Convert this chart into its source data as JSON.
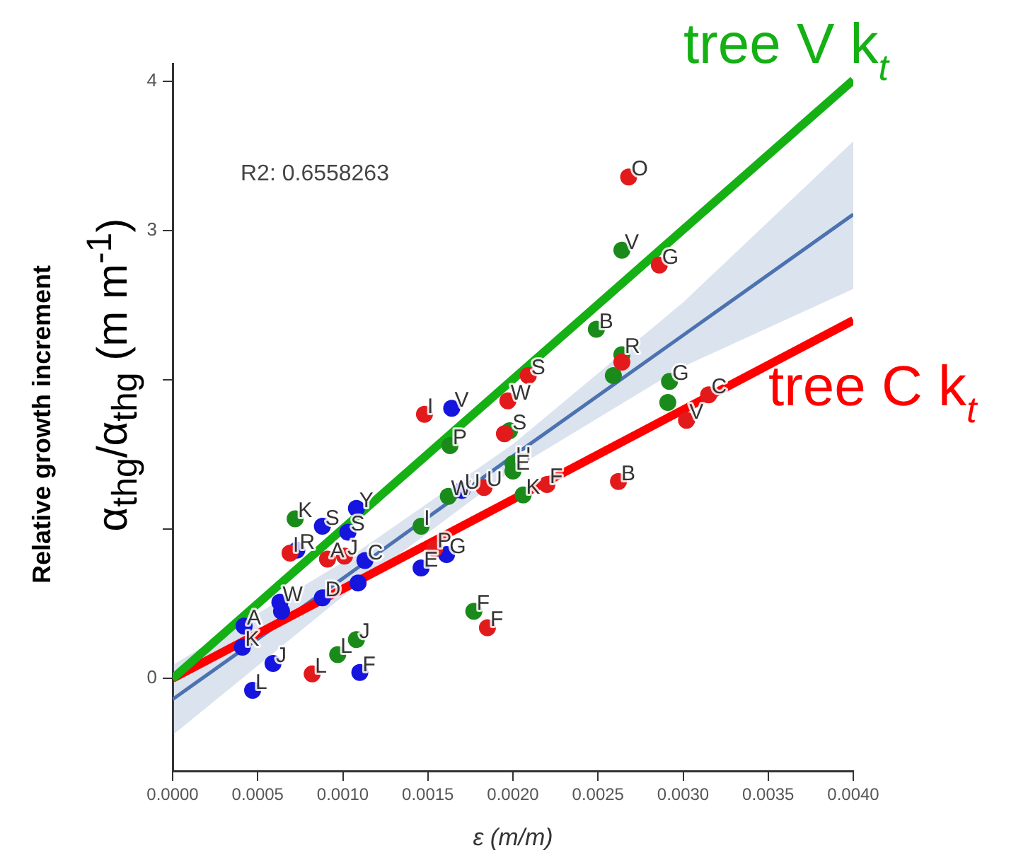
{
  "chart_data": {
    "type": "scatter",
    "xlabel": "ε (m/m)",
    "ylabel": "Relative growth increment\nα$_{thg}$/α$_{thg}$ (m m$^{-1}$)",
    "annotations": [
      "R2: 0.6558263"
    ],
    "xlim": [
      0,
      0.004
    ],
    "xticks": [
      {
        "value": 0,
        "label": "0.0000"
      },
      {
        "value": 0.0005,
        "label": "0.0005"
      },
      {
        "value": 0.001,
        "label": "0.0010"
      },
      {
        "value": 0.0015,
        "label": "0.0015"
      },
      {
        "value": 0.002,
        "label": "0.0020"
      },
      {
        "value": 0.0025,
        "label": "0.0025"
      },
      {
        "value": 0.003,
        "label": "0.0030"
      },
      {
        "value": 0.0035,
        "label": "0.0035"
      },
      {
        "value": 0.004,
        "label": "0.0040"
      }
    ],
    "ylim": [
      -0.62,
      4.12
    ],
    "yticks": [
      0,
      {
        "value": 1,
        "label": null
      },
      {
        "value": 2,
        "label": null
      },
      3,
      4
    ],
    "grid": false,
    "legend": false,
    "series": [
      {
        "marker": "circle",
        "color": "#e31a1c",
        "x": [
          0.00268,
          0.00286,
          0.00264,
          0.00315,
          0.00302,
          0.00209,
          0.00197,
          0.00195,
          0.00183,
          0.0022,
          0.00262,
          0.00148,
          0.00185,
          0.00082,
          0.00069,
          0.00091,
          0.00101,
          0.00154
        ],
        "values": [
          3.36,
          2.77,
          2.12,
          1.9,
          1.73,
          2.03,
          1.86,
          1.64,
          1.28,
          1.3,
          1.32,
          1.77,
          0.34,
          0.03,
          0.84,
          0.8,
          0.82,
          0.87
        ],
        "value_labels": [
          "O",
          "G",
          null,
          "C",
          "V",
          "S",
          "W",
          null,
          "U",
          "F",
          "B",
          "I",
          "F",
          "L",
          "I",
          "A",
          "J",
          "P"
        ]
      },
      {
        "marker": "circle",
        "color": "#1a8a1a",
        "x": [
          0.00264,
          0.00249,
          0.00264,
          0.00259,
          0.00292,
          0.00291,
          0.00163,
          0.00198,
          0.002,
          0.002,
          0.00206,
          0.00162,
          0.00146,
          0.00072,
          0.00177,
          0.00108,
          0.00097
        ],
        "values": [
          2.87,
          2.34,
          2.17,
          2.03,
          1.99,
          1.85,
          1.56,
          1.66,
          1.44,
          1.39,
          1.23,
          1.22,
          1.02,
          1.07,
          0.45,
          0.26,
          0.16
        ],
        "value_labels": [
          "V",
          "B",
          "R",
          null,
          "G",
          null,
          "P",
          "S",
          "H",
          "E",
          "K",
          "W",
          "I",
          "K",
          "F",
          "J",
          "L"
        ]
      },
      {
        "marker": "circle",
        "color": "#1515dd",
        "x": [
          0.00164,
          0.0017,
          0.00088,
          0.00103,
          0.00108,
          0.00113,
          0.00073,
          0.00109,
          0.00088,
          0.00063,
          0.00064,
          0.00042,
          0.00041,
          0.00059,
          0.00047,
          0.0011,
          0.00146,
          0.00161
        ],
        "values": [
          1.81,
          1.26,
          1.02,
          0.98,
          1.14,
          0.79,
          0.86,
          0.64,
          0.54,
          0.51,
          0.45,
          0.35,
          0.21,
          0.1,
          -0.08,
          0.04,
          0.74,
          0.83
        ],
        "value_labels": [
          "V",
          "U",
          "S",
          "S",
          "Y",
          "C",
          "R",
          null,
          "D",
          "W",
          null,
          "A",
          "K",
          "J",
          "L",
          "F",
          "E",
          "G"
        ]
      },
      {
        "type": "line",
        "color": "#4c72b0",
        "x": [
          0,
          0.001,
          0.002,
          0.003,
          0.004
        ],
        "values": [
          -0.14,
          0.67,
          1.49,
          2.3,
          3.11
        ],
        "lower": [
          -0.38,
          0.55,
          1.4,
          2.09,
          2.61
        ],
        "upper": [
          0.09,
          0.78,
          1.57,
          2.52,
          3.6
        ]
      },
      {
        "type": "line",
        "name": "tree V k$_{t}$",
        "color": "#14b014",
        "x": [
          0,
          0.004
        ],
        "values": [
          0,
          4.01
        ]
      },
      {
        "type": "line",
        "name": "tree C k$_{t}$",
        "color": "#ff0000",
        "x": [
          0,
          0.004
        ],
        "values": [
          0,
          2.4
        ]
      }
    ]
  }
}
